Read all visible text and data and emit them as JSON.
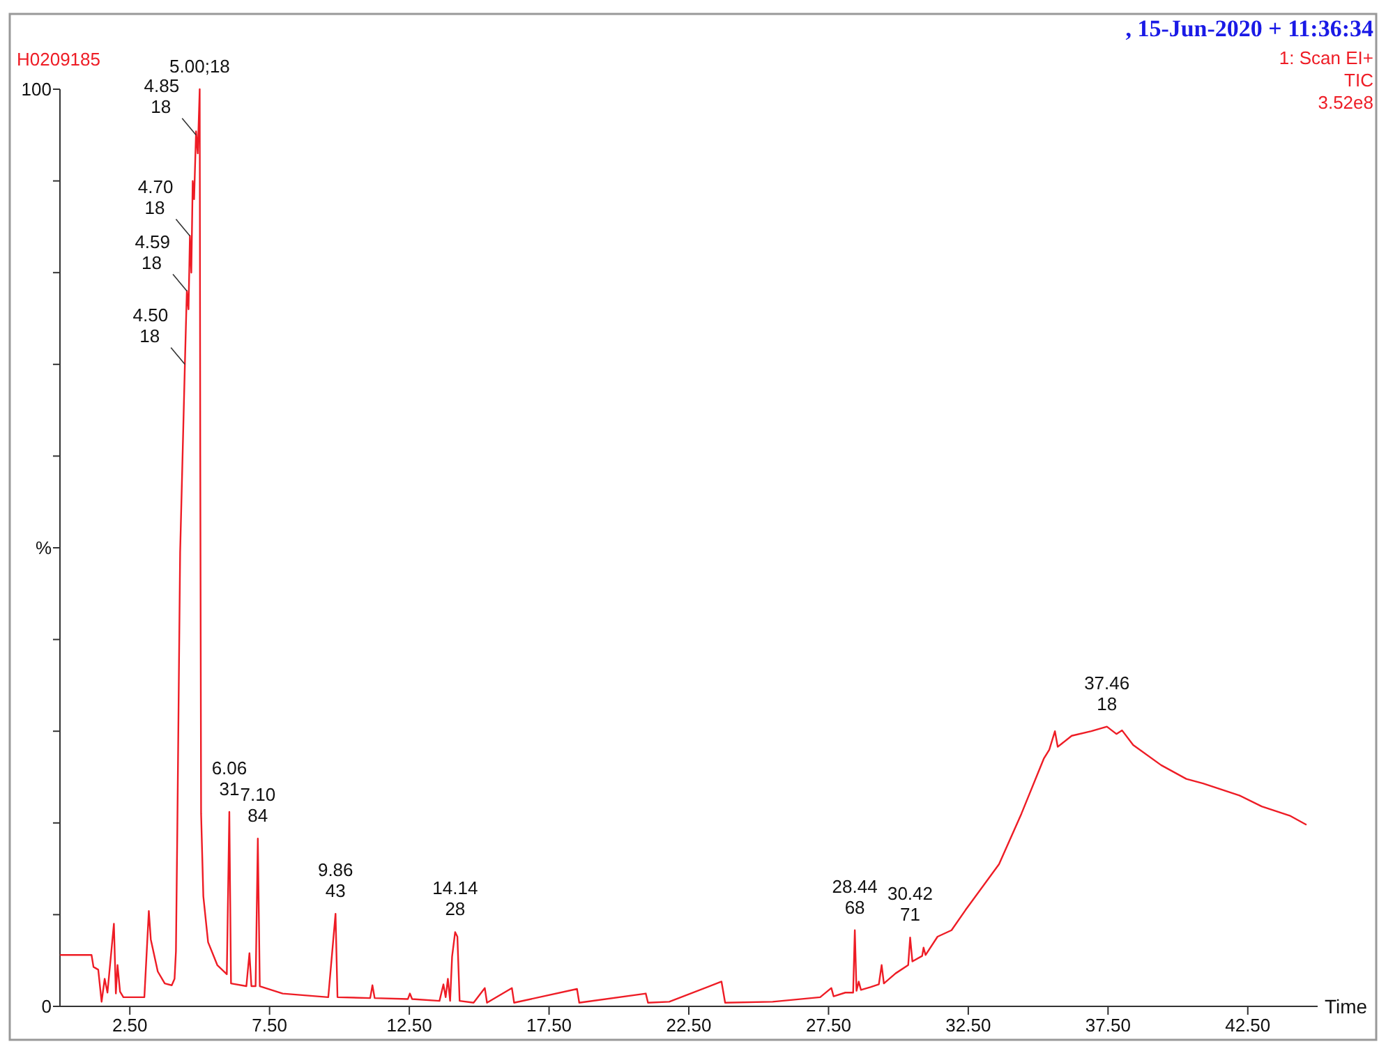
{
  "chart_data": {
    "type": "line",
    "title": "H0209185",
    "subtitle": ",  15-Jun-2020 + 11:36:34",
    "xlabel": "Time",
    "ylabel": "%",
    "x": [
      0,
      1.13,
      1.2,
      1.37,
      1.49,
      1.6,
      1.7,
      1.93,
      2.0,
      2.06,
      2.15,
      2.27,
      3.02,
      3.18,
      3.25,
      3.5,
      3.75,
      4.0,
      4.1,
      4.15,
      4.2,
      4.3,
      4.47,
      4.54,
      4.6,
      4.65,
      4.7,
      4.75,
      4.8,
      4.87,
      4.93,
      5.0,
      5.02,
      5.05,
      5.13,
      5.3,
      5.63,
      5.97,
      6.06,
      6.12,
      6.67,
      6.78,
      6.85,
      7.0,
      7.08,
      7.15,
      7.97,
      9.6,
      9.86,
      9.93,
      11.1,
      11.18,
      11.26,
      12.45,
      12.52,
      12.6,
      13.58,
      13.72,
      13.8,
      13.88,
      13.96,
      14.03,
      14.14,
      14.22,
      14.3,
      14.8,
      15.2,
      15.28,
      16.17,
      16.25,
      18.5,
      18.58,
      20.96,
      21.04,
      21.8,
      23.67,
      23.8,
      25.5,
      27.2,
      27.6,
      27.68,
      28.1,
      28.38,
      28.44,
      28.5,
      28.58,
      28.66,
      29.0,
      29.3,
      29.4,
      29.48,
      29.9,
      30.35,
      30.42,
      30.5,
      30.85,
      30.9,
      30.97,
      31.4,
      31.9,
      32.4,
      33.6,
      34.4,
      35.2,
      35.4,
      35.6,
      35.7,
      36.2,
      36.9,
      37.46,
      37.8,
      38.0,
      38.4,
      39.4,
      40.3,
      40.9,
      42.2,
      43.0,
      44.0,
      44.6
    ],
    "series": [
      {
        "color": "#ee1c25",
        "values": [
          5.6,
          5.6,
          4.3,
          4.0,
          0.5,
          3.0,
          1.5,
          9.0,
          1.4,
          4.5,
          1.6,
          1.0,
          1.0,
          10.4,
          7.3,
          3.8,
          2.5,
          2.3,
          3.0,
          6,
          19.5,
          49.5,
          70,
          78,
          76,
          84,
          80,
          90,
          88,
          95.4,
          93,
          100,
          60,
          21,
          12,
          7,
          4.5,
          3.5,
          21.2,
          2.5,
          2.2,
          5.8,
          2.2,
          2.2,
          18.3,
          2.2,
          1.4,
          1.0,
          10.1,
          1.0,
          0.9,
          2.3,
          0.9,
          0.8,
          1.4,
          0.8,
          0.6,
          2.4,
          1.0,
          3.0,
          0.6,
          5.4,
          8.1,
          7.6,
          0.6,
          0.4,
          2.0,
          0.4,
          2.0,
          0.4,
          1.9,
          0.4,
          1.4,
          0.4,
          0.5,
          2.7,
          0.4,
          0.5,
          1.0,
          2.0,
          1.1,
          1.5,
          1.5,
          8.3,
          1.7,
          2.7,
          1.8,
          2.1,
          2.4,
          4.5,
          2.5,
          3.6,
          4.5,
          7.5,
          4.9,
          5.5,
          6.4,
          5.6,
          7.6,
          8.3,
          10.5,
          15.5,
          21,
          27,
          28,
          30,
          28.3,
          29.5,
          30,
          30.5,
          29.7,
          30.1,
          28.5,
          26.3,
          24.8,
          24.3,
          23.0,
          21.8,
          20.8,
          19.8
        ]
      }
    ],
    "xlim": [
      0,
      45
    ],
    "xticks": [
      {
        "value": 2.5,
        "label": "2.50"
      },
      {
        "value": 7.5,
        "label": "7.50"
      },
      {
        "value": 12.5,
        "label": "12.50"
      },
      {
        "value": 17.5,
        "label": "17.50"
      },
      {
        "value": 22.5,
        "label": "22.50"
      },
      {
        "value": 27.5,
        "label": "27.50"
      },
      {
        "value": 32.5,
        "label": "32.50"
      },
      {
        "value": 37.5,
        "label": "37.50"
      },
      {
        "value": 42.5,
        "label": "42.50"
      }
    ],
    "ylim": [
      0,
      100
    ],
    "yticks": [
      0,
      {
        "value": 10,
        "label": null
      },
      {
        "value": 20,
        "label": null
      },
      {
        "value": 30,
        "label": null
      },
      {
        "value": 40,
        "label": null
      },
      {
        "value": 50,
        "label": null
      },
      {
        "value": 60,
        "label": null
      },
      {
        "value": 70,
        "label": null
      },
      {
        "value": 80,
        "label": null
      },
      {
        "value": 90,
        "label": null
      },
      100
    ],
    "grid": false,
    "annotations": [
      "1: Scan EI+",
      "TIC",
      "3.52e8",
      {
        "text": "5.00;18",
        "x": 5.0,
        "y": 100
      },
      {
        "text": "4.85\n18",
        "x": 4.87,
        "y": 95
      },
      {
        "text": "4.70\n18",
        "x": 4.65,
        "y": 84
      },
      {
        "text": "4.59\n18",
        "x": 4.54,
        "y": 78
      },
      {
        "text": "4.50\n18",
        "x": 4.47,
        "y": 70
      },
      {
        "text": "6.06\n31",
        "x": 6.06,
        "y": 21.2
      },
      {
        "text": "7.10\n84",
        "x": 7.08,
        "y": 18.3
      },
      {
        "text": "9.86\n43",
        "x": 9.86,
        "y": 10.1
      },
      {
        "text": "14.14\n28",
        "x": 14.14,
        "y": 8.1
      },
      {
        "text": "28.44\n68",
        "x": 28.44,
        "y": 8.3
      },
      {
        "text": "30.42\n71",
        "x": 30.42,
        "y": 7.5
      },
      {
        "text": "37.46\n18",
        "x": 37.46,
        "y": 30.5
      }
    ]
  }
}
